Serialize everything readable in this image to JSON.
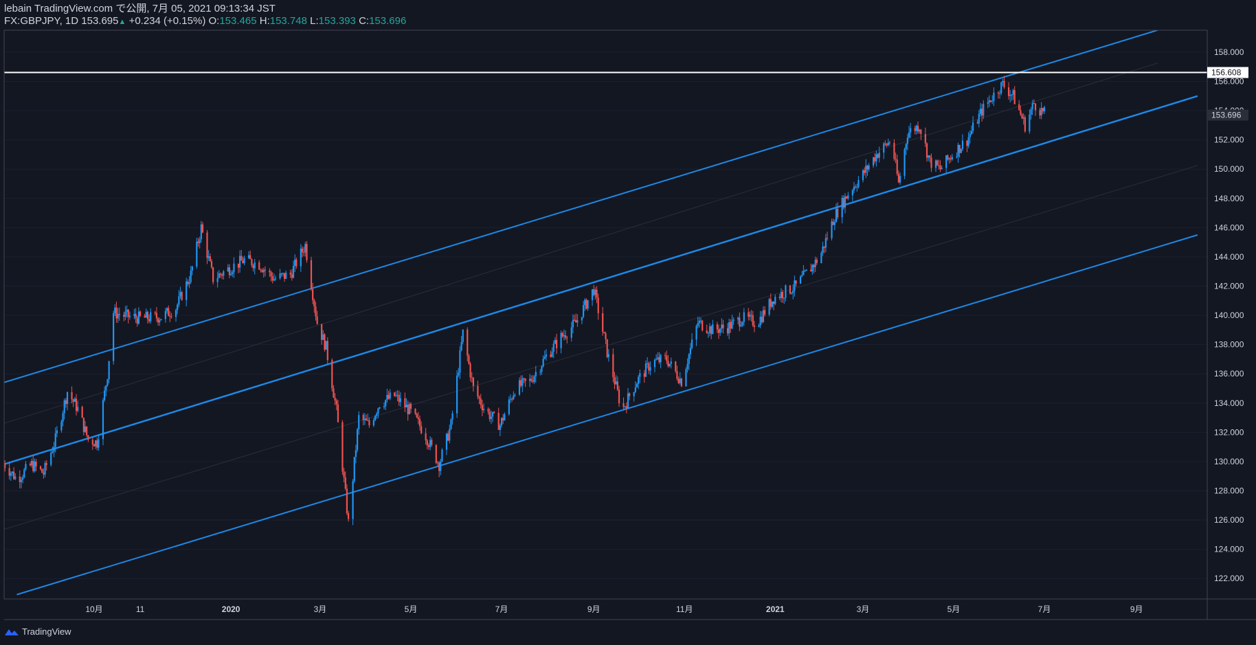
{
  "header": {
    "line1": "lebain TradingView.com で公開, 7月 05, 2021 09:13:34 JST",
    "symbol": "FX:GBPJPY, 1D 153.695",
    "change": "+0.234 (+0.15%)",
    "o_label": "O:",
    "o": "153.465",
    "h_label": "H:",
    "h": "153.748",
    "l_label": "L:",
    "l": "153.393",
    "c_label": "C:",
    "c": "153.696"
  },
  "footer": {
    "brand": "TradingView"
  },
  "colors": {
    "bg": "#131722",
    "up": "#2196f3",
    "down": "#ef5350",
    "channel": "#1e88e5",
    "hline": "#ffffff",
    "axis_text": "#d1d4dc"
  },
  "chart_data": {
    "type": "candlestick",
    "ylim": [
      120.6,
      159.5
    ],
    "yticks": [
      122,
      124,
      126,
      128,
      130,
      132,
      134,
      136,
      138,
      140,
      142,
      144,
      146,
      148,
      150,
      152,
      154,
      156,
      158
    ],
    "ytick_labels": [
      "122.000",
      "124.000",
      "126.000",
      "128.000",
      "130.000",
      "132.000",
      "134.000",
      "136.000",
      "138.000",
      "140.000",
      "142.000",
      "144.000",
      "146.000",
      "148.000",
      "150.000",
      "152.000",
      "154.000",
      "156.000",
      "158.000"
    ],
    "xticks": [
      {
        "label": "10月",
        "date": "2019-10-01"
      },
      {
        "label": "11",
        "date": "2019-11-01"
      },
      {
        "label": "2020",
        "date": "2020-01-01"
      },
      {
        "label": "3月",
        "date": "2020-03-01"
      },
      {
        "label": "5月",
        "date": "2020-05-01"
      },
      {
        "label": "7月",
        "date": "2020-07-01"
      },
      {
        "label": "9月",
        "date": "2020-09-01"
      },
      {
        "label": "11月",
        "date": "2020-11-01"
      },
      {
        "label": "2021",
        "date": "2021-01-01"
      },
      {
        "label": "3月",
        "date": "2021-03-01"
      },
      {
        "label": "5月",
        "date": "2021-05-01"
      },
      {
        "label": "7月",
        "date": "2021-07-01"
      },
      {
        "label": "9月",
        "date": "2021-09-01"
      }
    ],
    "price_path": [
      [
        "2019-08-01",
        129.9
      ],
      [
        "2019-08-10",
        128.8
      ],
      [
        "2019-08-20",
        129.8
      ],
      [
        "2019-08-28",
        129.2
      ],
      [
        "2019-09-05",
        131.5
      ],
      [
        "2019-09-13",
        134.8
      ],
      [
        "2019-09-20",
        133.6
      ],
      [
        "2019-09-27",
        131.5
      ],
      [
        "2019-10-03",
        131.3
      ],
      [
        "2019-10-10",
        136.0
      ],
      [
        "2019-10-14",
        140.2
      ],
      [
        "2019-10-20",
        140.0
      ],
      [
        "2019-11-01",
        139.8
      ],
      [
        "2019-11-15",
        139.9
      ],
      [
        "2019-11-25",
        140.5
      ],
      [
        "2019-12-05",
        142.8
      ],
      [
        "2019-12-12",
        146.0
      ],
      [
        "2019-12-20",
        142.5
      ],
      [
        "2019-12-31",
        143.2
      ],
      [
        "2020-01-10",
        143.8
      ],
      [
        "2020-01-20",
        143.5
      ],
      [
        "2020-01-30",
        142.5
      ],
      [
        "2020-02-10",
        142.8
      ],
      [
        "2020-02-20",
        144.8
      ],
      [
        "2020-02-28",
        139.5
      ],
      [
        "2020-03-05",
        137.8
      ],
      [
        "2020-03-12",
        133.5
      ],
      [
        "2020-03-20",
        125.8
      ],
      [
        "2020-03-27",
        133.0
      ],
      [
        "2020-04-03",
        132.5
      ],
      [
        "2020-04-10",
        134.0
      ],
      [
        "2020-04-20",
        134.5
      ],
      [
        "2020-04-30",
        133.5
      ],
      [
        "2020-05-10",
        132.0
      ],
      [
        "2020-05-20",
        129.8
      ],
      [
        "2020-05-28",
        132.5
      ],
      [
        "2020-06-05",
        138.8
      ],
      [
        "2020-06-12",
        135.0
      ],
      [
        "2020-06-20",
        133.5
      ],
      [
        "2020-06-30",
        132.5
      ],
      [
        "2020-07-10",
        135.0
      ],
      [
        "2020-07-20",
        135.5
      ],
      [
        "2020-07-31",
        137.2
      ],
      [
        "2020-08-10",
        138.5
      ],
      [
        "2020-08-20",
        139.5
      ],
      [
        "2020-09-01",
        141.8
      ],
      [
        "2020-09-10",
        137.5
      ],
      [
        "2020-09-20",
        133.5
      ],
      [
        "2020-09-30",
        135.5
      ],
      [
        "2020-10-10",
        136.8
      ],
      [
        "2020-10-20",
        137.0
      ],
      [
        "2020-10-30",
        135.5
      ],
      [
        "2020-11-10",
        139.5
      ],
      [
        "2020-11-20",
        139.0
      ],
      [
        "2020-11-30",
        139.2
      ],
      [
        "2020-12-10",
        139.8
      ],
      [
        "2020-12-20",
        139.5
      ],
      [
        "2020-12-31",
        141.2
      ],
      [
        "2021-01-15",
        142.0
      ],
      [
        "2021-01-31",
        144.0
      ],
      [
        "2021-02-10",
        146.8
      ],
      [
        "2021-02-20",
        148.5
      ],
      [
        "2021-02-28",
        149.5
      ],
      [
        "2021-03-10",
        151.0
      ],
      [
        "2021-03-20",
        152.0
      ],
      [
        "2021-03-25",
        149.0
      ],
      [
        "2021-03-31",
        152.5
      ],
      [
        "2021-04-08",
        153.0
      ],
      [
        "2021-04-15",
        150.5
      ],
      [
        "2021-04-22",
        150.0
      ],
      [
        "2021-04-30",
        151.0
      ],
      [
        "2021-05-10",
        152.0
      ],
      [
        "2021-05-20",
        154.0
      ],
      [
        "2021-05-31",
        155.5
      ],
      [
        "2021-06-03",
        155.8
      ],
      [
        "2021-06-10",
        155.0
      ],
      [
        "2021-06-18",
        153.0
      ],
      [
        "2021-06-24",
        154.5
      ],
      [
        "2021-07-02",
        153.69
      ]
    ],
    "channel_lines": [
      {
        "name": "upper",
        "from": [
          "2019-08-01",
          135.4
        ],
        "to": [
          "2021-09-15",
          159.5
        ]
      },
      {
        "name": "middle",
        "from": [
          "2019-08-01",
          129.8
        ],
        "to": [
          "2021-10-12",
          155.0
        ]
      },
      {
        "name": "lower",
        "from": [
          "2019-08-10",
          120.9
        ],
        "to": [
          "2021-10-12",
          145.5
        ]
      }
    ],
    "horizontal_line": {
      "value": 156.608,
      "label": "156.608"
    },
    "last_price": {
      "value": 153.696,
      "label": "153.696"
    }
  }
}
